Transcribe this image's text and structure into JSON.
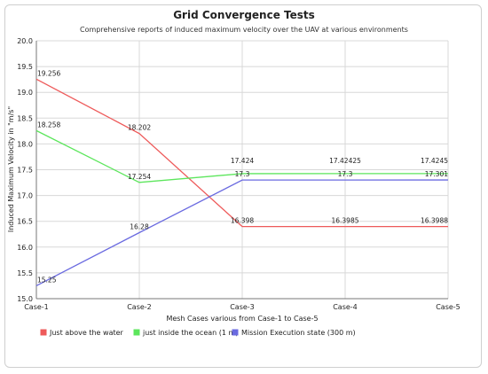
{
  "chart_data": {
    "type": "line",
    "title": "Grid Convergence Tests",
    "subtitle": "Comprehensive reports of induced maximum velocity over the UAV at various environments",
    "xlabel": "Mesh Cases various from Case-1 to Case-5",
    "ylabel": "Induced Maximum Velocity in \"m/s\"",
    "categories": [
      "Case-1",
      "Case-2",
      "Case-3",
      "Case-4",
      "Case-5"
    ],
    "ylim": [
      15.0,
      20.0
    ],
    "yticks": [
      "15.0",
      "15.5",
      "16.0",
      "16.5",
      "17.0",
      "17.5",
      "18.0",
      "18.5",
      "19.0",
      "19.5",
      "20.0"
    ],
    "grid": "horizontal",
    "legend_position": "bottom",
    "series": [
      {
        "name": "Just above the water",
        "color": "#ee5a5a",
        "values": [
          19.256,
          18.202,
          16.398,
          16.3985,
          16.3988
        ],
        "labels": [
          "19.256",
          "18.202",
          "16.398",
          "16.3985",
          "16.3988"
        ]
      },
      {
        "name": "just inside the ocean  (1 m)",
        "color": "#5ce65c",
        "values": [
          18.258,
          17.254,
          17.424,
          17.42425,
          17.4245
        ],
        "labels": [
          "18.258",
          "17.254",
          "17.424",
          "17.42425",
          "17.4245"
        ]
      },
      {
        "name": "Mission Execution state (300 m)",
        "color": "#6a6ae0",
        "values": [
          15.25,
          16.28,
          17.3,
          17.3,
          17.301
        ],
        "labels": [
          "15.25",
          "16.28",
          "17.3",
          "17.3",
          "17.301"
        ]
      }
    ]
  }
}
